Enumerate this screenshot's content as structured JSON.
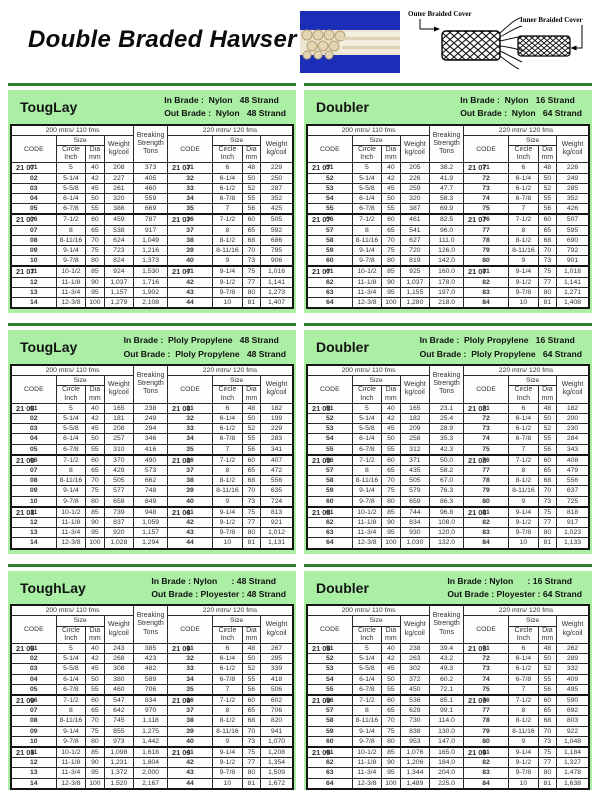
{
  "page": {
    "title": "Double Braded Hawser"
  },
  "diagram": {
    "outer_label": "Outer Braided Cover",
    "inner_label": "Inner Braided Cover"
  },
  "colors": {
    "accent_rule_green": "#2e7d32",
    "block_bg_green": "#abefa5",
    "code_cell_cyan": "#bff1e7",
    "photo_blue": "#1c2eb8"
  },
  "table_labels": {
    "left_caption": "200 mtrs/ 110 fms",
    "right_caption": "220 mtrs/ 120 fms",
    "code": "CODE",
    "size": "Size",
    "circle": [
      "Circle",
      "Inch"
    ],
    "dia": [
      "Dia",
      "mm"
    ],
    "weight": [
      "Weight",
      "kg/coil"
    ],
    "breaking": [
      "Breaking",
      "Strength",
      "Tons"
    ]
  },
  "blocks": [
    {
      "name": "TougLay",
      "in_line": "In Brade :  Nylon   48 Strand",
      "out_line": "Out Brade :  Nylon   48 Strand",
      "code_prefix": "21 07",
      "left_rows": [
        [
          "01",
          "5",
          "40",
          "208",
          "373"
        ],
        [
          "02",
          "5-1/4",
          "42",
          "227",
          "405"
        ],
        [
          "03",
          "5-5/8",
          "45",
          "261",
          "460"
        ],
        [
          "04",
          "6-1/4",
          "50",
          "320",
          "559"
        ],
        [
          "05",
          "6-7/8",
          "55",
          "386",
          "669"
        ],
        [
          "06",
          "7-1/2",
          "60",
          "459",
          "787"
        ],
        [
          "07",
          "8",
          "65",
          "538",
          "917"
        ],
        [
          "08",
          "8-11/16",
          "70",
          "624",
          "1,049"
        ],
        [
          "09",
          "9-1/4",
          "75",
          "723",
          "1,216"
        ],
        [
          "10",
          "9-7/8",
          "80",
          "824",
          "1,373"
        ],
        [
          "11",
          "10-1/2",
          "85",
          "924",
          "1,530"
        ],
        [
          "12",
          "11-1/8",
          "90",
          "1,037",
          "1,716"
        ],
        [
          "13",
          "11-3/4",
          "95",
          "1,157",
          "1,902"
        ],
        [
          "14",
          "12-3/8",
          "100",
          "1,279",
          "2,108"
        ]
      ],
      "right_rows": [
        [
          "31",
          "6",
          "48",
          "229"
        ],
        [
          "32",
          "6-1/4",
          "50",
          "250"
        ],
        [
          "33",
          "6-1/2",
          "52",
          "287"
        ],
        [
          "34",
          "6-7/8",
          "55",
          "352"
        ],
        [
          "35",
          "7",
          "56",
          "425"
        ],
        [
          "36",
          "7-1/2",
          "60",
          "505"
        ],
        [
          "37",
          "8",
          "65",
          "592"
        ],
        [
          "38",
          "8-1/2",
          "68",
          "686"
        ],
        [
          "39",
          "8-11/16",
          "70",
          "795"
        ],
        [
          "40",
          "9",
          "73",
          "906"
        ],
        [
          "41",
          "9-1/4",
          "75",
          "1,016"
        ],
        [
          "42",
          "9-1/2",
          "77",
          "1,141"
        ],
        [
          "43",
          "9-7/8",
          "80",
          "1,273"
        ],
        [
          "44",
          "10",
          "81",
          "1,407"
        ]
      ]
    },
    {
      "name": "Doubler",
      "in_line": "In Brade :  Nylon   16 Strand",
      "out_line": "Out Brade :  Nylon   64 Strand",
      "code_prefix": "21 07",
      "left_rows": [
        [
          "51",
          "5",
          "40",
          "205",
          "38.2"
        ],
        [
          "52",
          "5-1/4",
          "42",
          "226",
          "41.9"
        ],
        [
          "53",
          "5-5/8",
          "45",
          "259",
          "47.7"
        ],
        [
          "54",
          "6-1/4",
          "50",
          "320",
          "58.3"
        ],
        [
          "55",
          "6-7/8",
          "55",
          "387",
          "69.9"
        ],
        [
          "56",
          "7-1/2",
          "60",
          "461",
          "82.5"
        ],
        [
          "57",
          "8",
          "65",
          "541",
          "96.0"
        ],
        [
          "58",
          "8-11/16",
          "70",
          "627",
          "111.0"
        ],
        [
          "59",
          "9-1/4",
          "75",
          "720",
          "126.0"
        ],
        [
          "60",
          "9-7/8",
          "80",
          "819",
          "142.0"
        ],
        [
          "61",
          "10-1/2",
          "85",
          "925",
          "160.0"
        ],
        [
          "62",
          "11-1/8",
          "90",
          "1,037",
          "178.0"
        ],
        [
          "63",
          "11-3/4",
          "95",
          "1,155",
          "197.0"
        ],
        [
          "64",
          "12-3/8",
          "100",
          "1,280",
          "218.0"
        ]
      ],
      "right_rows": [
        [
          "71",
          "6",
          "48",
          "226"
        ],
        [
          "72",
          "6-1/4",
          "50",
          "249"
        ],
        [
          "73",
          "6-1/2",
          "52",
          "285"
        ],
        [
          "74",
          "6-7/8",
          "55",
          "352"
        ],
        [
          "75",
          "7",
          "56",
          "426"
        ],
        [
          "76",
          "7-1/2",
          "60",
          "507"
        ],
        [
          "77",
          "8",
          "65",
          "595"
        ],
        [
          "78",
          "8-1/2",
          "68",
          "690"
        ],
        [
          "79",
          "8-11/16",
          "70",
          "792"
        ],
        [
          "80",
          "9",
          "73",
          "901"
        ],
        [
          "81",
          "9-1/4",
          "75",
          "1,018"
        ],
        [
          "82",
          "9-1/2",
          "77",
          "1,141"
        ],
        [
          "83",
          "9-7/8",
          "80",
          "1,271"
        ],
        [
          "84",
          "10",
          "81",
          "1,408"
        ]
      ]
    },
    {
      "name": "TougLay",
      "in_line": "In Brade :  Ploly Propylene   48 Strand",
      "out_line": "Out Brade :  Ploly Propylene   48 Strand",
      "code_prefix": "21 08",
      "left_rows": [
        [
          "01",
          "5",
          "40",
          "165",
          "238"
        ],
        [
          "02",
          "5-1/4",
          "42",
          "181",
          "249"
        ],
        [
          "03",
          "5-5/8",
          "45",
          "208",
          "294"
        ],
        [
          "04",
          "6-1/4",
          "50",
          "257",
          "346"
        ],
        [
          "05",
          "6-7/8",
          "55",
          "310",
          "416"
        ],
        [
          "06",
          "7-1/2",
          "60",
          "370",
          "490"
        ],
        [
          "07",
          "8",
          "65",
          "429",
          "573"
        ],
        [
          "08",
          "8-11/16",
          "70",
          "505",
          "662"
        ],
        [
          "09",
          "9-1/4",
          "75",
          "577",
          "748"
        ],
        [
          "10",
          "9-7/8",
          "80",
          "658",
          "849"
        ],
        [
          "11",
          "10-1/2",
          "85",
          "739",
          "948"
        ],
        [
          "12",
          "11-1/8",
          "90",
          "837",
          "1,059"
        ],
        [
          "13",
          "11-3/4",
          "95",
          "920",
          "1,157"
        ],
        [
          "14",
          "12-3/8",
          "100",
          "1,028",
          "1,294"
        ]
      ],
      "right_rows": [
        [
          "31",
          "6",
          "48",
          "182"
        ],
        [
          "32",
          "6-1/4",
          "50",
          "199"
        ],
        [
          "33",
          "6-1/2",
          "52",
          "229"
        ],
        [
          "34",
          "6-7/8",
          "55",
          "283"
        ],
        [
          "35",
          "7",
          "56",
          "341"
        ],
        [
          "36",
          "7-1/2",
          "60",
          "407"
        ],
        [
          "37",
          "8",
          "65",
          "472"
        ],
        [
          "38",
          "8-1/2",
          "68",
          "556"
        ],
        [
          "39",
          "8-11/16",
          "70",
          "635"
        ],
        [
          "40",
          "9",
          "73",
          "724"
        ],
        [
          "41",
          "9-1/4",
          "75",
          "813"
        ],
        [
          "42",
          "9-1/2",
          "77",
          "921"
        ],
        [
          "43",
          "9-7/8",
          "80",
          "1,012"
        ],
        [
          "44",
          "10",
          "81",
          "1,131"
        ]
      ]
    },
    {
      "name": "Doubler",
      "in_line": "In Brade :  Ploly Propylene   16 Strand",
      "out_line": "Out Brade :  Ploly Propylene   64 Strand",
      "code_prefix": "21 08",
      "left_rows": [
        [
          "51",
          "5",
          "40",
          "165",
          "23.1"
        ],
        [
          "52",
          "5-1/4",
          "42",
          "182",
          "25.4"
        ],
        [
          "53",
          "5-5/8",
          "45",
          "209",
          "28.9"
        ],
        [
          "54",
          "6-1/4",
          "50",
          "258",
          "35.3"
        ],
        [
          "55",
          "6-7/8",
          "55",
          "312",
          "42.3"
        ],
        [
          "56",
          "7-1/2",
          "60",
          "371",
          "50.0"
        ],
        [
          "57",
          "8",
          "65",
          "435",
          "58.2"
        ],
        [
          "58",
          "8-11/16",
          "70",
          "505",
          "67.0"
        ],
        [
          "59",
          "9-1/4",
          "75",
          "579",
          "76.3"
        ],
        [
          "60",
          "9-7/8",
          "80",
          "659",
          "86.3"
        ],
        [
          "61",
          "10-1/2",
          "85",
          "744",
          "96.8"
        ],
        [
          "62",
          "11-1/8",
          "90",
          "834",
          "108.0"
        ],
        [
          "63",
          "11-3/4",
          "95",
          "930",
          "120.0"
        ],
        [
          "64",
          "12-3/8",
          "100",
          "1,030",
          "132.0"
        ]
      ],
      "right_rows": [
        [
          "71",
          "6",
          "48",
          "182"
        ],
        [
          "72",
          "6-1/4",
          "50",
          "200"
        ],
        [
          "73",
          "6-1/2",
          "52",
          "230"
        ],
        [
          "74",
          "6-7/8",
          "55",
          "284"
        ],
        [
          "75",
          "7",
          "56",
          "343"
        ],
        [
          "76",
          "7-1/2",
          "60",
          "408"
        ],
        [
          "77",
          "8",
          "65",
          "479"
        ],
        [
          "78",
          "8-1/2",
          "68",
          "556"
        ],
        [
          "79",
          "8-11/16",
          "70",
          "637"
        ],
        [
          "80",
          "9",
          "73",
          "725"
        ],
        [
          "81",
          "9-1/4",
          "75",
          "818"
        ],
        [
          "82",
          "9-1/2",
          "77",
          "917"
        ],
        [
          "83",
          "9-7/8",
          "80",
          "1,023"
        ],
        [
          "84",
          "10",
          "81",
          "1,133"
        ]
      ]
    },
    {
      "name": "ToughLay",
      "in_line": "In Brade : Nylon      : 48 Strand",
      "out_line": "Out Brade : Ployester : 48 Strand",
      "code_prefix": "21 09",
      "left_rows": [
        [
          "01",
          "5",
          "40",
          "243",
          "385"
        ],
        [
          "02",
          "5-1/4",
          "42",
          "268",
          "423"
        ],
        [
          "03",
          "5-5/8",
          "45",
          "308",
          "482"
        ],
        [
          "04",
          "6-1/4",
          "50",
          "380",
          "589"
        ],
        [
          "05",
          "6-7/8",
          "55",
          "460",
          "706"
        ],
        [
          "06",
          "7-1/2",
          "60",
          "547",
          "834"
        ],
        [
          "07",
          "8",
          "65",
          "642",
          "970"
        ],
        [
          "08",
          "8-11/16",
          "70",
          "745",
          "1,118"
        ],
        [
          "09",
          "9-1/4",
          "75",
          "855",
          "1,275"
        ],
        [
          "10",
          "9-7/8",
          "80",
          "973",
          "1,442"
        ],
        [
          "11",
          "10-1/2",
          "85",
          "1,098",
          "1,618"
        ],
        [
          "12",
          "11-1/8",
          "90",
          "1,231",
          "1,804"
        ],
        [
          "13",
          "11-3/4",
          "95",
          "1,372",
          "2,000"
        ],
        [
          "14",
          "12-3/8",
          "100",
          "1,520",
          "2,167"
        ]
      ],
      "right_rows": [
        [
          "31",
          "6",
          "48",
          "267"
        ],
        [
          "32",
          "6-1/4",
          "50",
          "295"
        ],
        [
          "33",
          "6-1/2",
          "52",
          "339"
        ],
        [
          "34",
          "6-7/8",
          "55",
          "418"
        ],
        [
          "35",
          "7",
          "56",
          "506"
        ],
        [
          "36",
          "7-1/2",
          "60",
          "602"
        ],
        [
          "37",
          "8",
          "65",
          "706"
        ],
        [
          "38",
          "8-1/2",
          "68",
          "820"
        ],
        [
          "39",
          "8-11/16",
          "70",
          "941"
        ],
        [
          "40",
          "9",
          "73",
          "1,070"
        ],
        [
          "41",
          "9-1/4",
          "75",
          "1,208"
        ],
        [
          "42",
          "9-1/2",
          "77",
          "1,354"
        ],
        [
          "43",
          "9-7/8",
          "80",
          "1,509"
        ],
        [
          "44",
          "10",
          "81",
          "1,672"
        ]
      ]
    },
    {
      "name": "Doubler",
      "in_line": "In Brade : Nylon      : 16 Strand",
      "out_line": "Out Brade : Ployester : 64 Strand",
      "code_prefix": "21 09",
      "left_rows": [
        [
          "51",
          "5",
          "40",
          "238",
          "39.4"
        ],
        [
          "52",
          "5-1/4",
          "42",
          "263",
          "43.2"
        ],
        [
          "53",
          "5-5/8",
          "45",
          "302",
          "49.3"
        ],
        [
          "54",
          "6-1/4",
          "50",
          "372",
          "60.2"
        ],
        [
          "55",
          "6-7/8",
          "55",
          "450",
          "72.1"
        ],
        [
          "56",
          "7-1/2",
          "60",
          "536",
          "85.1"
        ],
        [
          "57",
          "8",
          "65",
          "629",
          "99.1"
        ],
        [
          "58",
          "8-11/16",
          "70",
          "730",
          "114.0"
        ],
        [
          "59",
          "9-1/4",
          "75",
          "838",
          "130.0"
        ],
        [
          "60",
          "9-7/8",
          "80",
          "953",
          "147.0"
        ],
        [
          "61",
          "10-1/2",
          "85",
          "1,076",
          "165.0"
        ],
        [
          "62",
          "11-1/8",
          "90",
          "1,206",
          "184.0"
        ],
        [
          "63",
          "11-3/4",
          "95",
          "1,344",
          "204.0"
        ],
        [
          "64",
          "12-3/8",
          "100",
          "1,489",
          "225.0"
        ]
      ],
      "right_rows": [
        [
          "71",
          "6",
          "48",
          "262"
        ],
        [
          "72",
          "6-1/4",
          "50",
          "289"
        ],
        [
          "73",
          "6-1/2",
          "52",
          "332"
        ],
        [
          "74",
          "6-7/8",
          "55",
          "409"
        ],
        [
          "75",
          "7",
          "56",
          "495"
        ],
        [
          "76",
          "7-1/2",
          "60",
          "590"
        ],
        [
          "77",
          "8",
          "65",
          "692"
        ],
        [
          "78",
          "8-1/2",
          "68",
          "803"
        ],
        [
          "79",
          "8-11/16",
          "70",
          "922"
        ],
        [
          "80",
          "9",
          "73",
          "1,048"
        ],
        [
          "81",
          "9-1/4",
          "75",
          "1,184"
        ],
        [
          "82",
          "9-1/2",
          "77",
          "1,327"
        ],
        [
          "83",
          "9-7/8",
          "80",
          "1,478"
        ],
        [
          "84",
          "10",
          "81",
          "1,638"
        ]
      ]
    }
  ]
}
